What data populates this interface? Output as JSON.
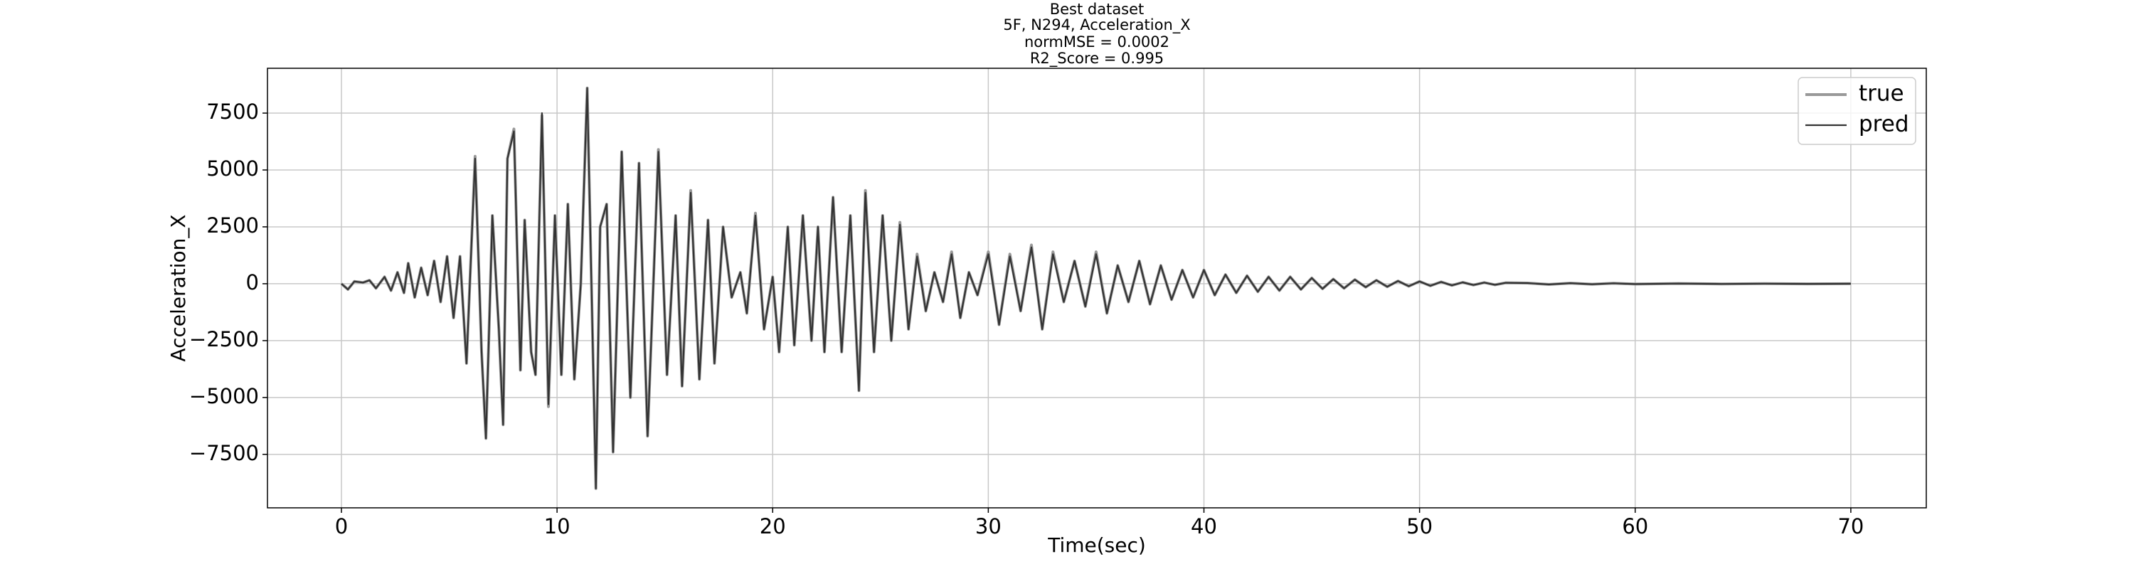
{
  "chart_data": {
    "type": "line",
    "title": "Best dataset",
    "subtitle": [
      "5F, N294, Acceleration_X",
      "normMSE = 0.0002",
      "R2_Score = 0.995"
    ],
    "x_label": "Time(sec)",
    "y_label": "Acceleration_X",
    "x": [
      0,
      0.3,
      0.6,
      1.0,
      1.3,
      1.6,
      2.0,
      2.3,
      2.6,
      2.9,
      3.1,
      3.4,
      3.7,
      4.0,
      4.3,
      4.6,
      4.9,
      5.2,
      5.5,
      5.8,
      6.2,
      6.5,
      6.7,
      7.0,
      7.3,
      7.5,
      7.7,
      8.0,
      8.3,
      8.5,
      8.8,
      9.0,
      9.3,
      9.6,
      9.9,
      10.2,
      10.5,
      10.8,
      11.1,
      11.4,
      11.8,
      12.0,
      12.3,
      12.6,
      13.0,
      13.4,
      13.8,
      14.2,
      14.7,
      15.1,
      15.5,
      15.8,
      16.2,
      16.6,
      17.0,
      17.3,
      17.7,
      18.1,
      18.5,
      18.8,
      19.2,
      19.6,
      20.0,
      20.3,
      20.7,
      21.0,
      21.4,
      21.8,
      22.1,
      22.4,
      22.8,
      23.2,
      23.6,
      24.0,
      24.3,
      24.7,
      25.1,
      25.5,
      25.9,
      26.3,
      26.7,
      27.1,
      27.5,
      27.9,
      28.3,
      28.7,
      29.1,
      29.5,
      30.0,
      30.5,
      31.0,
      31.5,
      32.0,
      32.5,
      33.0,
      33.5,
      34.0,
      34.5,
      35.0,
      35.5,
      36.0,
      36.5,
      37.0,
      37.5,
      38.0,
      38.5,
      39.0,
      39.5,
      40.0,
      40.5,
      41.0,
      41.5,
      42.0,
      42.5,
      43.0,
      43.5,
      44.0,
      44.5,
      45.0,
      45.5,
      46.0,
      46.5,
      47.0,
      47.5,
      48.0,
      48.5,
      49.0,
      49.5,
      50.0,
      50.5,
      51.0,
      51.5,
      52.0,
      52.5,
      53.0,
      53.5,
      54.0,
      55.0,
      56.0,
      57.0,
      58.0,
      59.0,
      60.0,
      62.0,
      64.0,
      66.0,
      68.0,
      70.0
    ],
    "series": [
      {
        "name": "true",
        "color": "#999999",
        "values": [
          0,
          -250,
          100,
          50,
          150,
          -200,
          300,
          -300,
          500,
          -400,
          900,
          -600,
          700,
          -500,
          1000,
          -800,
          1200,
          -1500,
          1200,
          -3500,
          5600,
          -3000,
          -6800,
          3000,
          -2000,
          -6200,
          5500,
          6800,
          -3800,
          2800,
          -3000,
          -4000,
          7400,
          -5400,
          3000,
          -4000,
          3500,
          -4200,
          0,
          8600,
          -9000,
          2500,
          3500,
          -7400,
          5800,
          -5000,
          5300,
          -6700,
          5900,
          -4000,
          3000,
          -4500,
          4100,
          -4200,
          2800,
          -3500,
          2500,
          -600,
          500,
          -1300,
          3100,
          -2000,
          300,
          -3000,
          2500,
          -2700,
          3000,
          -2500,
          2500,
          -3000,
          3800,
          -3000,
          3000,
          -4700,
          4100,
          -3000,
          3000,
          -2500,
          2700,
          -2000,
          1300,
          -1200,
          500,
          -800,
          1400,
          -1500,
          500,
          -500,
          1400,
          -1800,
          1300,
          -1200,
          1700,
          -2000,
          1400,
          -800,
          1000,
          -1000,
          1400,
          -1300,
          800,
          -800,
          1000,
          -900,
          800,
          -700,
          600,
          -600,
          600,
          -500,
          400,
          -400,
          350,
          -350,
          300,
          -300,
          300,
          -250,
          250,
          -220,
          200,
          -200,
          180,
          -150,
          150,
          -130,
          120,
          -110,
          100,
          -90,
          80,
          -70,
          60,
          -55,
          50,
          -45,
          40,
          30,
          -30,
          25,
          -20,
          20,
          -15,
          10,
          -10,
          5,
          -5,
          0
        ]
      },
      {
        "name": "pred",
        "color": "#333333",
        "values": [
          0,
          -250,
          100,
          50,
          150,
          -200,
          300,
          -300,
          500,
          -400,
          900,
          -600,
          700,
          -500,
          1000,
          -800,
          1200,
          -1500,
          1200,
          -3500,
          5500,
          -3000,
          -6800,
          3000,
          -2000,
          -6200,
          5500,
          6700,
          -3800,
          2800,
          -3000,
          -4000,
          7500,
          -5300,
          3000,
          -4000,
          3500,
          -4200,
          0,
          8600,
          -9000,
          2500,
          3500,
          -7400,
          5800,
          -5000,
          5300,
          -6700,
          5800,
          -4000,
          3000,
          -4500,
          4000,
          -4200,
          2800,
          -3500,
          2500,
          -600,
          500,
          -1300,
          3000,
          -2000,
          300,
          -3000,
          2500,
          -2700,
          3000,
          -2500,
          2500,
          -3000,
          3800,
          -3000,
          3000,
          -4700,
          4000,
          -3000,
          3000,
          -2500,
          2600,
          -2000,
          1200,
          -1200,
          500,
          -800,
          1300,
          -1500,
          500,
          -500,
          1300,
          -1800,
          1200,
          -1200,
          1600,
          -2000,
          1300,
          -800,
          1000,
          -1000,
          1300,
          -1300,
          800,
          -800,
          1000,
          -900,
          800,
          -700,
          600,
          -600,
          600,
          -500,
          400,
          -400,
          350,
          -350,
          300,
          -300,
          300,
          -250,
          250,
          -220,
          200,
          -200,
          180,
          -150,
          150,
          -130,
          120,
          -110,
          100,
          -90,
          80,
          -70,
          60,
          -55,
          50,
          -45,
          40,
          30,
          -30,
          25,
          -20,
          20,
          -15,
          10,
          -10,
          5,
          -5,
          0
        ]
      }
    ],
    "xlim": [
      -3.43,
      73.5
    ],
    "ylim": [
      -9850,
      9470
    ],
    "xticks": [
      0,
      10,
      20,
      30,
      40,
      50,
      60,
      70
    ],
    "yticks": [
      {
        "value": -7500,
        "label": "−7500"
      },
      {
        "value": -5000,
        "label": "−5000"
      },
      {
        "value": -2500,
        "label": "−2500"
      },
      0,
      2500,
      5000,
      7500
    ],
    "grid": true,
    "legend": "upper right"
  }
}
